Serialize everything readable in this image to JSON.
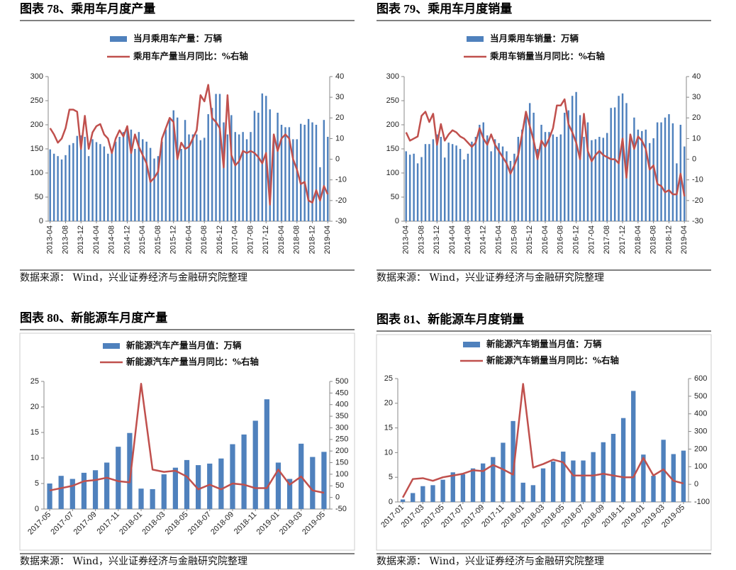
{
  "chart_data": [
    {
      "type": "combo",
      "title": "图表 78、乘用车月度产量",
      "note": "数据来源： Wind，兴业证券经济与金融研究院整理",
      "categories": [
        "2013-04",
        null,
        null,
        null,
        "2013-08",
        null,
        null,
        null,
        "2013-12",
        null,
        null,
        null,
        "2014-04",
        null,
        null,
        null,
        "2014-08",
        null,
        null,
        null,
        "2014-12",
        null,
        null,
        null,
        "2015-04",
        null,
        null,
        null,
        "2015-08",
        null,
        null,
        null,
        "2015-12",
        null,
        null,
        null,
        "2016-04",
        null,
        null,
        null,
        "2016-08",
        null,
        null,
        null,
        "2016-12",
        null,
        null,
        null,
        "2017-04",
        null,
        null,
        null,
        "2017-08",
        null,
        null,
        null,
        "2017-12",
        null,
        null,
        null,
        "2018-04",
        null,
        null,
        null,
        "2018-08",
        null,
        null,
        null,
        "2018-12",
        null,
        null,
        null,
        "2019-04"
      ],
      "series": [
        {
          "name": "当月乘用车产量：万辆",
          "type": "bar",
          "color": "#4f81bd",
          "values": [
            149,
            140,
            135,
            128,
            137,
            158,
            162,
            177,
            178,
            175,
            135,
            170,
            164,
            160,
            155,
            140,
            148,
            165,
            175,
            185,
            195,
            190,
            150,
            185,
            170,
            165,
            152,
            130,
            135,
            165,
            190,
            210,
            230,
            215,
            150,
            210,
            180,
            180,
            180,
            168,
            173,
            222,
            235,
            264,
            264,
            205,
            180,
            220,
            185,
            180,
            185,
            170,
            185,
            229,
            225,
            265,
            260,
            232,
            180,
            225,
            200,
            195,
            195,
            170,
            170,
            202,
            200,
            212,
            205,
            200,
            112,
            210,
            175
          ]
        },
        {
          "name": "乘用车产量当月同比：%右轴",
          "type": "line",
          "axis": "y2",
          "color": "#c0504d",
          "values": [
            15,
            12,
            8,
            10,
            15,
            24,
            24,
            23,
            5,
            21,
            5,
            13,
            16,
            17,
            12,
            10,
            3,
            10,
            14,
            11,
            16,
            3,
            12,
            6,
            2,
            -2,
            -11,
            -9,
            -6,
            10,
            15,
            20,
            18,
            0,
            8,
            5,
            6,
            10,
            14,
            31,
            28,
            36,
            20,
            18,
            15,
            -4,
            31,
            2,
            -3,
            -1,
            4,
            3,
            4,
            3,
            1,
            -2,
            3,
            -22,
            12,
            4,
            10,
            12,
            10,
            0,
            -5,
            -12,
            -11,
            -20,
            -21,
            -15,
            -20,
            -13,
            -17
          ]
        }
      ],
      "ylim": [
        0,
        300
      ],
      "yticks": [
        0,
        50,
        100,
        150,
        200,
        250,
        300
      ],
      "y2lim": [
        -30,
        40
      ],
      "y2ticks": [
        -30,
        -20,
        -10,
        0,
        10,
        20,
        30,
        40
      ],
      "grid": false
    },
    {
      "type": "combo",
      "title": "图表 79、乘用车月度销量",
      "note": "数据来源： Wind，兴业证券经济与金融研究院整理",
      "categories": [
        "2013-04",
        null,
        null,
        null,
        "2013-08",
        null,
        null,
        null,
        "2013-12",
        null,
        null,
        null,
        "2014-04",
        null,
        null,
        null,
        "2014-08",
        null,
        null,
        null,
        "2014-12",
        null,
        null,
        null,
        "2015-04",
        null,
        null,
        null,
        "2015-08",
        null,
        null,
        null,
        "2015-12",
        null,
        null,
        null,
        "2016-04",
        null,
        null,
        null,
        "2016-08",
        null,
        null,
        null,
        "2016-12",
        null,
        null,
        null,
        "2017-04",
        null,
        null,
        null,
        "2017-08",
        null,
        null,
        null,
        "2017-12",
        null,
        null,
        null,
        "2018-04",
        null,
        null,
        null,
        "2018-08",
        null,
        null,
        null,
        "2018-12",
        null,
        null,
        null,
        "2019-04"
      ],
      "series": [
        {
          "name": "当月乘用车销量：万辆",
          "type": "bar",
          "color": "#4f81bd",
          "values": [
            145,
            138,
            140,
            120,
            133,
            160,
            160,
            170,
            180,
            175,
            132,
            163,
            160,
            157,
            150,
            128,
            140,
            165,
            175,
            200,
            205,
            178,
            145,
            170,
            162,
            155,
            145,
            125,
            140,
            175,
            190,
            220,
            245,
            225,
            150,
            200,
            185,
            185,
            180,
            175,
            180,
            225,
            230,
            260,
            268,
            220,
            175,
            205,
            168,
            170,
            175,
            173,
            183,
            235,
            236,
            260,
            265,
            245,
            170,
            215,
            190,
            187,
            190,
            162,
            172,
            205,
            205,
            215,
            222,
            203,
            120,
            200,
            155
          ]
        },
        {
          "name": "乘用车销量当月同比：%右轴",
          "type": "line",
          "axis": "y2",
          "color": "#c0504d",
          "values": [
            13,
            9,
            10,
            11,
            21,
            23,
            18,
            22,
            7,
            17,
            9,
            12,
            14,
            13,
            11,
            10,
            8,
            6,
            8,
            15,
            10,
            7,
            12,
            7,
            4,
            1,
            -2,
            -7,
            -3,
            2,
            12,
            23,
            16,
            9,
            0,
            9,
            6,
            10,
            15,
            26,
            26,
            29,
            17,
            13,
            8,
            0,
            22,
            4,
            -1,
            2,
            4,
            2,
            1,
            0,
            0,
            -2,
            10,
            -9,
            12,
            5,
            11,
            9,
            5,
            -5,
            -3,
            -12,
            -13,
            -16,
            -15,
            -17,
            -17,
            -7,
            -18
          ]
        }
      ],
      "ylim": [
        0,
        300
      ],
      "yticks": [
        0,
        50,
        100,
        150,
        200,
        250,
        300
      ],
      "y2lim": [
        -30,
        40
      ],
      "y2ticks": [
        -30,
        -20,
        -10,
        0,
        10,
        20,
        30,
        40
      ],
      "grid": false
    },
    {
      "type": "combo",
      "title": "图表 80、新能源车月度产量",
      "note": "数据来源： Wind，兴业证券经济与金融研究院整理",
      "categories": [
        "2017-05",
        null,
        "2017-07",
        null,
        "2017-09",
        null,
        "2017-11",
        null,
        "2018-01",
        null,
        "2018-03",
        null,
        "2018-05",
        null,
        "2018-07",
        null,
        "2018-09",
        null,
        "2018-11",
        null,
        "2019-01",
        null,
        "2019-03",
        null,
        "2019-05"
      ],
      "series": [
        {
          "name": "新能源汽车产量当月值：万辆",
          "type": "bar",
          "color": "#4f81bd",
          "values": [
            5.0,
            6.5,
            5.9,
            7.1,
            7.6,
            9.1,
            12.2,
            14.9,
            4.0,
            3.9,
            6.8,
            8.1,
            9.6,
            8.6,
            8.9,
            9.9,
            12.7,
            14.6,
            17.3,
            21.5,
            9.1,
            5.9,
            12.8,
            10.2,
            11.2
          ]
        },
        {
          "name": "新能源汽车产量当月同比：%右轴",
          "type": "line",
          "axis": "y2",
          "color": "#c0504d",
          "values": [
            30,
            40,
            50,
            70,
            75,
            85,
            70,
            65,
            490,
            120,
            110,
            115,
            90,
            35,
            55,
            35,
            60,
            55,
            40,
            40,
            120,
            55,
            90,
            30,
            20
          ]
        }
      ],
      "ylim": [
        0,
        25
      ],
      "yticks": [
        0,
        5,
        10,
        15,
        20,
        25
      ],
      "y2lim": [
        -50,
        500
      ],
      "y2ticks": [
        -50,
        0,
        50,
        100,
        150,
        200,
        250,
        300,
        350,
        400,
        450,
        500
      ],
      "grid": false
    },
    {
      "type": "combo",
      "title": "图表 81、新能源车月度销量",
      "note": "数据来源： Wind，兴业证券经济与金融研究院整理",
      "categories": [
        "2017-01",
        null,
        "2017-03",
        null,
        "2017-05",
        null,
        "2017-07",
        null,
        "2017-09",
        null,
        "2017-11",
        null,
        "2018-01",
        null,
        "2018-03",
        null,
        "2018-05",
        null,
        "2018-07",
        null,
        "2018-09",
        null,
        "2018-11",
        null,
        "2019-01",
        null,
        "2019-03",
        null,
        "2019-05"
      ],
      "series": [
        {
          "name": "新能源汽车销量当月值：万辆",
          "type": "bar",
          "color": "#4f81bd",
          "values": [
            0.5,
            1.8,
            3.2,
            3.4,
            4.5,
            6.0,
            5.6,
            6.8,
            7.8,
            9.1,
            12.0,
            16.4,
            3.9,
            3.4,
            6.8,
            8.2,
            10.2,
            8.4,
            8.4,
            10.1,
            12.1,
            13.8,
            17.0,
            22.5,
            9.6,
            5.3,
            12.6,
            9.7,
            10.4
          ]
        },
        {
          "name": "新能源汽车销量当月同比：%右轴",
          "type": "line",
          "axis": "y2",
          "color": "#c0504d",
          "values": [
            -75,
            30,
            35,
            20,
            40,
            50,
            60,
            80,
            75,
            110,
            85,
            55,
            570,
            95,
            115,
            140,
            125,
            50,
            50,
            50,
            60,
            50,
            40,
            40,
            150,
            50,
            85,
            20,
            5
          ]
        }
      ],
      "ylim": [
        0,
        25
      ],
      "yticks": [
        0,
        5,
        10,
        15,
        20,
        25
      ],
      "y2lim": [
        -100,
        600
      ],
      "y2ticks": [
        -100,
        0,
        100,
        200,
        300,
        400,
        500,
        600
      ],
      "grid": false
    }
  ]
}
